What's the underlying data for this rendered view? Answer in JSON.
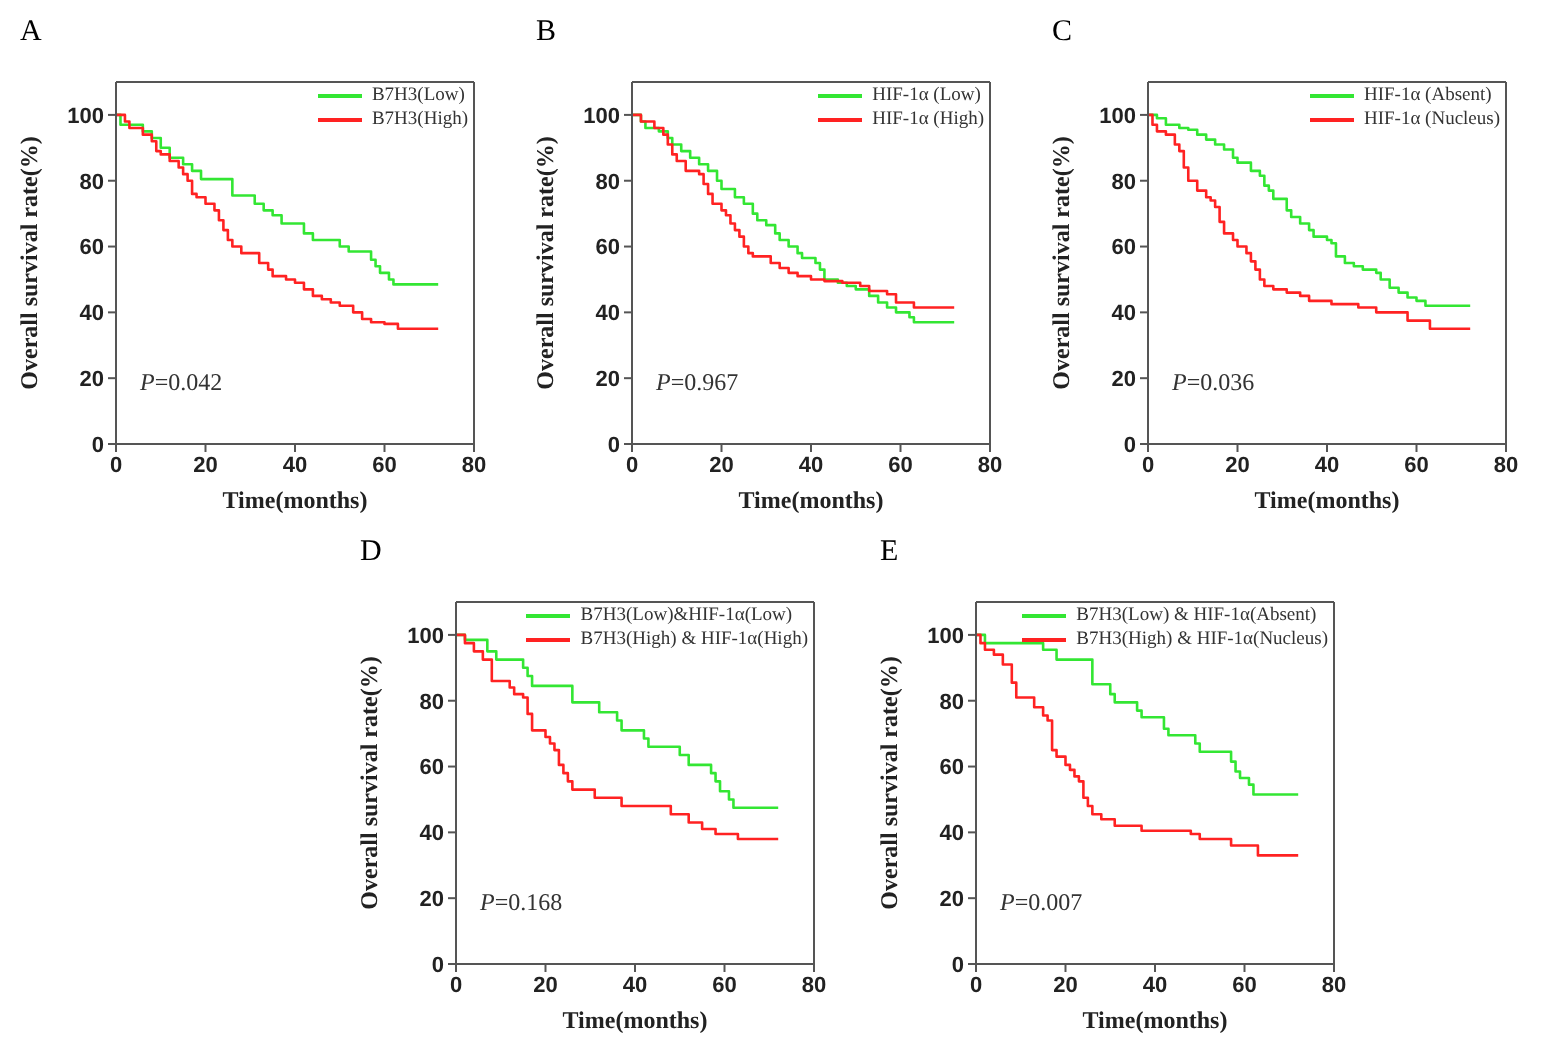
{
  "chart_data": [
    {
      "type": "step",
      "title": "A",
      "xlabel": "Time(months)",
      "ylabel": "Overall survival rate(%)",
      "xlim": [
        0,
        80
      ],
      "xticks": [
        0,
        20,
        40,
        60,
        80
      ],
      "ylim": [
        0,
        110
      ],
      "yticks": [
        0,
        20,
        40,
        60,
        80,
        100
      ],
      "legend": "top right",
      "grid": false,
      "annotations": [
        "P=0.042"
      ],
      "series": [
        {
          "name": "B7H3(Low)",
          "color": "#33e633",
          "x": [
            0,
            1,
            6,
            8,
            10,
            12,
            15,
            17,
            19,
            26,
            31,
            33,
            35,
            37,
            42,
            44,
            50,
            52,
            57,
            58,
            59,
            61,
            62,
            72
          ],
          "values": [
            100,
            97,
            95,
            93,
            90,
            87,
            85,
            83,
            80.5,
            75.5,
            73,
            71,
            69.5,
            67,
            64,
            62,
            60,
            58.5,
            56,
            54,
            52,
            50,
            48.5,
            48.5
          ]
        },
        {
          "name": "B7H3(High)",
          "color": "#ff2222",
          "x": [
            0,
            2,
            3,
            6,
            8,
            9,
            10,
            12,
            14,
            15,
            16,
            17,
            18,
            20,
            22,
            23,
            24,
            25,
            26,
            28,
            32,
            34,
            35,
            38,
            40,
            42,
            44,
            46,
            48,
            50,
            53,
            55,
            57,
            60,
            63,
            72
          ],
          "values": [
            100,
            98,
            96,
            94,
            92,
            89,
            88,
            86,
            84,
            82,
            80,
            76,
            75,
            73,
            71,
            68,
            65,
            62,
            60,
            58,
            55,
            53,
            51,
            50,
            49,
            47,
            45,
            44,
            43,
            42,
            40,
            38,
            37,
            36.5,
            35,
            35
          ]
        }
      ]
    },
    {
      "type": "step",
      "title": "B",
      "xlabel": "Time(months)",
      "ylabel": "Overall survival rate(%)",
      "xlim": [
        0,
        80
      ],
      "xticks": [
        0,
        20,
        40,
        60,
        80
      ],
      "ylim": [
        0,
        110
      ],
      "yticks": [
        0,
        20,
        40,
        60,
        80,
        100
      ],
      "legend": "top right",
      "grid": false,
      "annotations": [
        "P=0.967"
      ],
      "series": [
        {
          "name": "HIF-1α (Low)",
          "color": "#33e633",
          "x": [
            0,
            2,
            3,
            6,
            8,
            9,
            11,
            13,
            15,
            17,
            19,
            20,
            23,
            25,
            27,
            28,
            30,
            32,
            33,
            35,
            37,
            38,
            41,
            42,
            43,
            46,
            48,
            50,
            53,
            55,
            57,
            59,
            62,
            63,
            72
          ],
          "values": [
            100,
            98,
            96,
            95,
            93,
            91,
            89,
            87,
            85,
            83,
            80,
            77.5,
            75,
            73,
            70,
            68,
            66.5,
            64,
            62,
            60,
            58,
            56.5,
            55,
            53,
            50,
            49,
            48,
            47,
            45,
            43,
            41.5,
            40,
            38.5,
            37,
            37
          ]
        },
        {
          "name": "HIF-1α (High)",
          "color": "#ff2222",
          "x": [
            0,
            2,
            5,
            7,
            8,
            9,
            10,
            12,
            15,
            16,
            17,
            18,
            20,
            21,
            22,
            23,
            24,
            25,
            26,
            27,
            31,
            33,
            35,
            37,
            40,
            43,
            47,
            51,
            53,
            57,
            59,
            63,
            72
          ],
          "values": [
            100,
            98,
            96,
            94,
            91,
            88,
            86,
            83,
            82,
            79,
            76,
            73,
            71,
            69.5,
            67,
            65,
            63,
            60,
            58,
            57,
            55,
            53.5,
            52,
            51,
            50,
            49.5,
            49,
            48,
            46.5,
            45.5,
            43,
            41.5,
            41.5
          ]
        }
      ]
    },
    {
      "type": "step",
      "title": "C",
      "xlabel": "Time(months)",
      "ylabel": "Overall survival rate(%)",
      "xlim": [
        0,
        80
      ],
      "xticks": [
        0,
        20,
        40,
        60,
        80
      ],
      "ylim": [
        0,
        110
      ],
      "yticks": [
        0,
        20,
        40,
        60,
        80,
        100
      ],
      "legend": "top right",
      "grid": false,
      "annotations": [
        "P=0.036"
      ],
      "series": [
        {
          "name": "HIF-1α (Absent)",
          "color": "#33e633",
          "x": [
            0,
            2,
            4,
            7,
            9,
            11,
            13,
            15,
            17,
            19,
            20,
            23,
            25,
            26,
            27,
            28,
            31,
            32,
            34,
            36,
            37,
            40,
            41,
            42,
            44,
            46,
            48,
            51,
            52,
            54,
            56,
            58,
            60,
            62,
            72
          ],
          "values": [
            100,
            99,
            97,
            96,
            95.5,
            94,
            92.5,
            91,
            89.5,
            87,
            85.5,
            83,
            81.5,
            78.5,
            77,
            74.5,
            71,
            69,
            67,
            65,
            63,
            62,
            61,
            57,
            55,
            54,
            53,
            52,
            50,
            47.5,
            46,
            44.5,
            43.5,
            42,
            42
          ]
        },
        {
          "name": "HIF-1α (Nucleus)",
          "color": "#ff2222",
          "x": [
            0,
            1,
            2,
            4,
            6,
            7,
            8,
            9,
            11,
            13,
            14,
            15,
            16,
            17,
            19,
            20,
            22,
            23,
            24,
            25,
            26,
            28,
            31,
            34,
            36,
            41,
            47,
            51,
            58,
            63,
            72
          ],
          "values": [
            100,
            97,
            95,
            94,
            91,
            89,
            84,
            80,
            77,
            75,
            74,
            72,
            67.5,
            64,
            62,
            60,
            58,
            55.5,
            53,
            50,
            48,
            47,
            46,
            45,
            43.5,
            42.5,
            41.5,
            40,
            37.5,
            35,
            35
          ]
        }
      ]
    },
    {
      "type": "step",
      "title": "D",
      "xlabel": "Time(months)",
      "ylabel": "Overall survival rate(%)",
      "xlim": [
        0,
        80
      ],
      "xticks": [
        0,
        20,
        40,
        60,
        80
      ],
      "ylim": [
        0,
        110
      ],
      "yticks": [
        0,
        20,
        40,
        60,
        80,
        100
      ],
      "legend": "top right",
      "grid": false,
      "annotations": [
        "P=0.168"
      ],
      "series": [
        {
          "name": "B7H3(Low)&HIF-1α(Low)",
          "color": "#33e633",
          "x": [
            0,
            2,
            7,
            9,
            15,
            16,
            17,
            26,
            32,
            36,
            37,
            42,
            43,
            50,
            52,
            57,
            58,
            59,
            61,
            62,
            72
          ],
          "values": [
            100,
            98.5,
            95,
            92.5,
            90,
            87.5,
            84.5,
            79.5,
            76.5,
            74,
            71,
            68.5,
            66,
            63.5,
            60.5,
            58,
            55.5,
            52.5,
            50,
            47.5,
            47.5
          ]
        },
        {
          "name": "B7H3(High) & HIF-1α(High)",
          "color": "#ff2222",
          "x": [
            0,
            2,
            4,
            6,
            8,
            12,
            13,
            15,
            16,
            17,
            20,
            21,
            22,
            23,
            24,
            25,
            26,
            31,
            37,
            48,
            52,
            55,
            58,
            63,
            72
          ],
          "values": [
            100,
            97.5,
            95,
            92.5,
            86,
            84,
            82,
            81,
            76,
            71,
            69,
            67,
            65,
            60.5,
            58,
            55.5,
            53,
            50.5,
            48,
            45.5,
            43,
            41,
            39.5,
            38,
            38
          ]
        }
      ]
    },
    {
      "type": "step",
      "title": "E",
      "xlabel": "Time(months)",
      "ylabel": "Overall survival rate(%)",
      "xlim": [
        0,
        80
      ],
      "xticks": [
        0,
        20,
        40,
        60,
        80
      ],
      "ylim": [
        0,
        110
      ],
      "yticks": [
        0,
        20,
        40,
        60,
        80,
        100
      ],
      "legend": "top right",
      "grid": false,
      "annotations": [
        "P=0.007"
      ],
      "series": [
        {
          "name": "B7H3(Low) & HIF-1α(Absent)",
          "color": "#33e633",
          "x": [
            0,
            2,
            15,
            18,
            26,
            30,
            31,
            36,
            37,
            42,
            43,
            49,
            50,
            57,
            58,
            59,
            61,
            62,
            72
          ],
          "values": [
            100,
            97.5,
            95.5,
            92.5,
            85,
            82,
            79.5,
            77,
            75,
            71.5,
            69.5,
            67,
            64.5,
            61.5,
            58.5,
            56.5,
            54.5,
            51.5,
            51.5
          ]
        },
        {
          "name": "B7H3(High) & HIF-1α(Nucleus)",
          "color": "#ff2222",
          "x": [
            0,
            1,
            2,
            4,
            6,
            8,
            9,
            13,
            15,
            16,
            17,
            18,
            20,
            21,
            22,
            23,
            24,
            25,
            26,
            28,
            31,
            37,
            48,
            50,
            57,
            63,
            72
          ],
          "values": [
            100,
            97.5,
            95.5,
            94,
            91,
            85.5,
            81,
            78,
            75.5,
            74,
            65,
            63,
            60.5,
            59,
            57,
            55.5,
            50.5,
            48,
            45.5,
            44,
            42,
            40.5,
            39.5,
            38,
            36,
            33,
            33
          ]
        }
      ]
    }
  ]
}
